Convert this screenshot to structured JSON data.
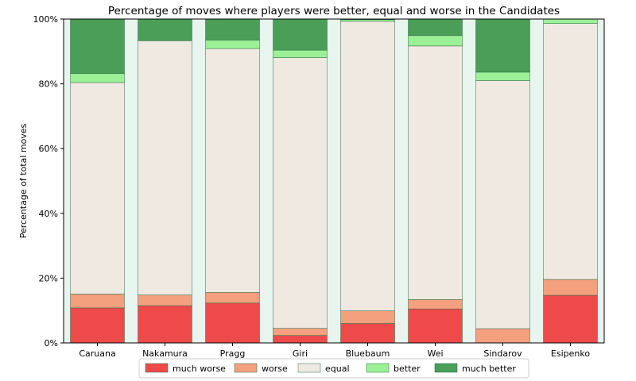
{
  "chart_data": {
    "type": "bar",
    "stacked": true,
    "title": "Percentage of moves where players were better, equal and worse in the Candidates",
    "xlabel": "",
    "ylabel": "Percentage of total moves",
    "ylim": [
      0,
      100
    ],
    "yticks": [
      0,
      20,
      40,
      60,
      80,
      100
    ],
    "ytick_labels": [
      "0%",
      "20%",
      "40%",
      "60%",
      "80%",
      "100%"
    ],
    "grid": false,
    "legend_position": "bottom-center",
    "plot_background": "#e8f5ef",
    "categories": [
      "Caruana",
      "Nakamura",
      "Pragg",
      "Giri",
      "Bluebaum",
      "Wei",
      "Sindarov",
      "Esipenko"
    ],
    "series": [
      {
        "name": "much worse",
        "color": "#ef4a4a",
        "values": [
          10.8,
          11.5,
          12.3,
          2.3,
          6.0,
          10.5,
          0.0,
          14.7
        ]
      },
      {
        "name": "worse",
        "color": "#f4a07e",
        "values": [
          4.3,
          3.3,
          3.3,
          2.2,
          3.9,
          2.9,
          4.4,
          4.9
        ]
      },
      {
        "name": "equal",
        "color": "#efe9e2",
        "values": [
          65.3,
          78.5,
          75.3,
          83.6,
          89.4,
          78.3,
          76.6,
          79.0
        ]
      },
      {
        "name": "better",
        "color": "#9cf095",
        "values": [
          2.8,
          0.0,
          2.6,
          2.3,
          0.5,
          3.2,
          2.6,
          1.4
        ]
      },
      {
        "name": "much better",
        "color": "#4a9e57",
        "values": [
          16.8,
          6.7,
          6.5,
          9.6,
          0.2,
          5.1,
          16.4,
          0.0
        ]
      }
    ]
  }
}
